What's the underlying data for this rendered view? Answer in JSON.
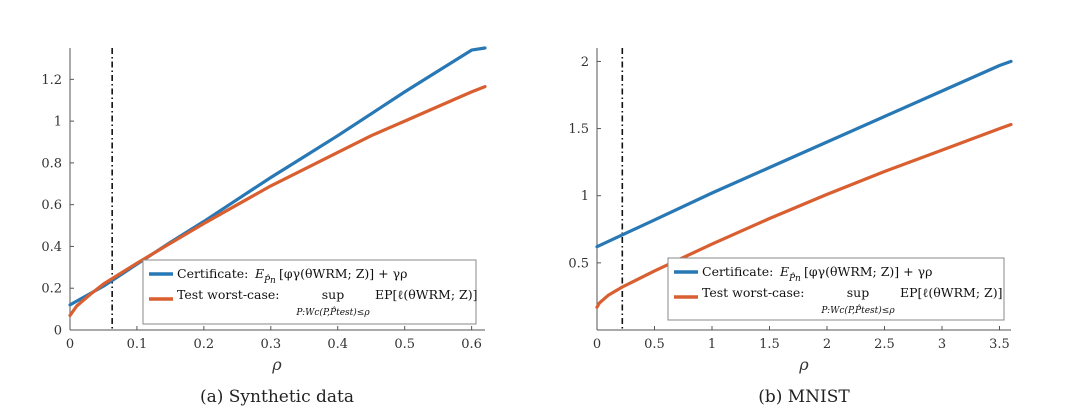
{
  "chart_data": [
    {
      "type": "line",
      "caption": "(a)  Synthetic data",
      "xlabel": "ρ",
      "ylabel": "",
      "xlim": [
        0,
        0.62
      ],
      "ylim": [
        0,
        1.35
      ],
      "xticks": [
        0,
        0.1,
        0.2,
        0.3,
        0.4,
        0.5,
        0.6
      ],
      "yticks": [
        0,
        0.2,
        0.4,
        0.6,
        0.8,
        1,
        1.2
      ],
      "xtick_labels": [
        "0",
        "0.1",
        "0.2",
        "0.3",
        "0.4",
        "0.5",
        "0.6"
      ],
      "ytick_labels": [
        "0",
        "0.2",
        "0.4",
        "0.6",
        "0.8",
        "1",
        "1.2"
      ],
      "vline": 0.063,
      "legend_position": "bottom-right",
      "series": [
        {
          "name": "Certificate",
          "color": "#2878b5",
          "x": [
            0,
            0.05,
            0.1,
            0.15,
            0.2,
            0.25,
            0.3,
            0.35,
            0.4,
            0.45,
            0.5,
            0.55,
            0.6,
            0.62
          ],
          "y": [
            0.12,
            0.21,
            0.315,
            0.42,
            0.52,
            0.625,
            0.73,
            0.83,
            0.93,
            1.035,
            1.14,
            1.24,
            1.34,
            1.38
          ]
        },
        {
          "name": "Test worst-case",
          "color": "#d95f30",
          "x": [
            0,
            0.01,
            0.03,
            0.05,
            0.1,
            0.15,
            0.2,
            0.25,
            0.3,
            0.35,
            0.4,
            0.45,
            0.5,
            0.55,
            0.6,
            0.62
          ],
          "y": [
            0.07,
            0.115,
            0.17,
            0.22,
            0.32,
            0.415,
            0.51,
            0.6,
            0.69,
            0.77,
            0.85,
            0.93,
            1.0,
            1.07,
            1.14,
            1.165
          ]
        }
      ],
      "legend": {
        "cert_label": "Certificate:",
        "cert_formula": "E",
        "cert_sub": "P̂n",
        "cert_rest": "[φγ(θWRM; Z)] + γρ",
        "test_label": "Test worst-case:",
        "test_sup": "sup",
        "test_under": "P:Wc(P,P̂test)≤ρ",
        "test_rest": "EP[ℓ(θWRM; Z)]"
      }
    },
    {
      "type": "line",
      "caption": "(b)  MNIST",
      "xlabel": "ρ",
      "ylabel": "",
      "xlim": [
        0,
        3.6
      ],
      "ylim": [
        0,
        2.1
      ],
      "xticks": [
        0,
        0.5,
        1,
        1.5,
        2,
        2.5,
        3,
        3.5
      ],
      "yticks": [
        0.5,
        1,
        1.5,
        2
      ],
      "xtick_labels": [
        "0",
        "0.5",
        "1",
        "1.5",
        "2",
        "2.5",
        "3",
        "3.5"
      ],
      "ytick_labels": [
        "0.5",
        "1",
        "1.5",
        "2"
      ],
      "vline": 0.22,
      "legend_position": "bottom-right",
      "series": [
        {
          "name": "Certificate",
          "color": "#2878b5",
          "x": [
            0,
            0.5,
            1,
            1.5,
            2,
            2.5,
            3,
            3.5,
            3.6
          ],
          "y": [
            0.62,
            0.82,
            1.02,
            1.21,
            1.4,
            1.59,
            1.78,
            1.97,
            2.0
          ]
        },
        {
          "name": "Test worst-case",
          "color": "#d95f30",
          "x": [
            0,
            0.02,
            0.1,
            0.22,
            0.5,
            1,
            1.5,
            2,
            2.5,
            3,
            3.5,
            3.6
          ],
          "y": [
            0.17,
            0.2,
            0.26,
            0.32,
            0.44,
            0.64,
            0.83,
            1.01,
            1.18,
            1.34,
            1.5,
            1.53
          ]
        }
      ],
      "legend": {
        "cert_label": "Certificate:",
        "cert_formula": "E",
        "cert_sub": "P̂n",
        "cert_rest": "[φγ(θWRM; Z)] + γρ",
        "test_label": "Test worst-case:",
        "test_sup": "sup",
        "test_under": "P:Wc(P,P̂test)≤ρ",
        "test_rest": "EP[ℓ(θWRM; Z)]"
      }
    }
  ]
}
